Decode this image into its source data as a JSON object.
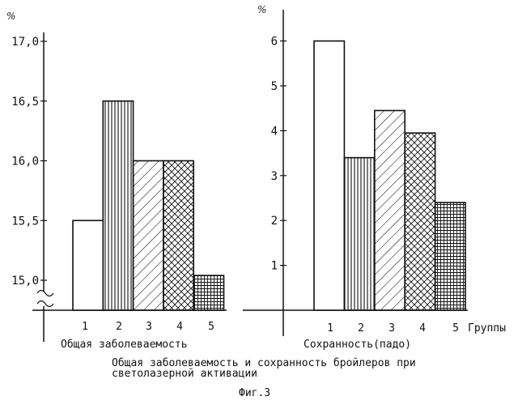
{
  "chart_data": [
    {
      "type": "bar",
      "xlabel": "Общая заболеваемость",
      "ylabel_unit": "%",
      "categories": [
        "1",
        "2",
        "3",
        "4",
        "5"
      ],
      "values": [
        15.5,
        16.5,
        16.0,
        16.0,
        15.04
      ],
      "ylim": [
        15.0,
        17.0
      ],
      "y_axis_break": true,
      "ytick_labels": [
        "15,0",
        "15,5",
        "16,0",
        "16,5",
        "17,0"
      ],
      "fill_patterns": [
        "empty",
        "vertical-lines",
        "diagonal-hatch",
        "cross-hatch",
        "grid"
      ],
      "grid": false
    },
    {
      "type": "bar",
      "xlabel": "Сохранность(падо)",
      "ylabel_unit": "%",
      "x_axis_title": "Группы",
      "categories": [
        "1",
        "2",
        "3",
        "4",
        "5"
      ],
      "values": [
        6.0,
        3.4,
        4.45,
        3.95,
        2.4
      ],
      "ylim": [
        0,
        6.5
      ],
      "ytick_labels": [
        "1",
        "2",
        "3",
        "4",
        "5",
        "6"
      ],
      "fill_patterns": [
        "empty",
        "vertical-lines",
        "diagonal-hatch",
        "cross-hatch",
        "grid"
      ],
      "grid": false
    }
  ],
  "caption": {
    "line1": "Общая заболеваемость и  сохранность бройлеров при",
    "line2": "светолазерной активации",
    "figure_label": "Фиг.3"
  }
}
